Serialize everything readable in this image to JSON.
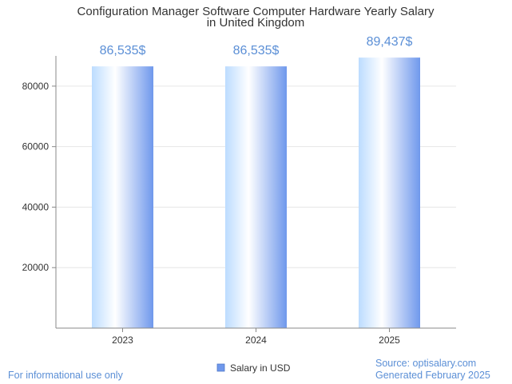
{
  "chart_data": {
    "type": "bar",
    "title_lines": [
      "Configuration Manager Software Computer Hardware Yearly Salary",
      "in United Kingdom"
    ],
    "categories": [
      "2023",
      "2024",
      "2025"
    ],
    "series": [
      {
        "name": "Salary in USD",
        "values": [
          86535,
          86535,
          89437
        ]
      }
    ],
    "data_labels": [
      "86,535$",
      "86,535$",
      "89,437$"
    ],
    "y_ticks": [
      20000,
      40000,
      60000,
      80000
    ],
    "ylim": [
      0,
      90000
    ],
    "grid": true,
    "legend_position": "bottom-center",
    "colors": {
      "bar_light": "#ffffff",
      "bar_mid": "#bcdcff",
      "bar_dark": "#6f98ec",
      "label": "#5b8fd6"
    }
  },
  "footer": {
    "left": "For informational use only",
    "right_lines": [
      "Source: optisalary.com",
      "Generated February 2025"
    ]
  }
}
